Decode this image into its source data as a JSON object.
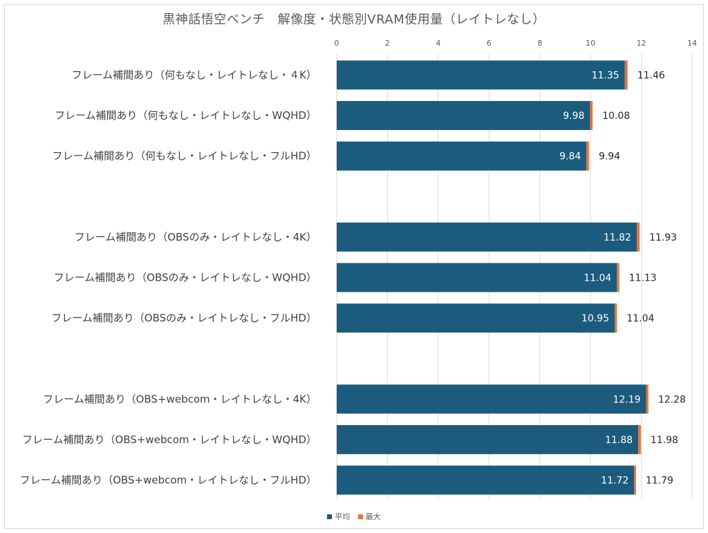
{
  "chart_data": {
    "type": "bar",
    "orientation": "horizontal",
    "title": "黒神話悟空ベンチ　解像度・状態別VRAM使用量（レイトレなし）",
    "xlim": [
      0,
      14
    ],
    "xticks": [
      "0",
      "2",
      "4",
      "6",
      "8",
      "10",
      "12",
      "14"
    ],
    "x_axis_position": "top",
    "grid": "vertical",
    "legend_position": "bottom",
    "categories": [
      "フレーム補間あり（何もなし・レイトレなし・４K）",
      "フレーム補間あり（何もなし・レイトレなし・WQHD）",
      "フレーム補間あり（何もなし・レイトレなし・フルHD）",
      "フレーム補間あり（OBSのみ・レイトレなし・4K）",
      "フレーム補間あり（OBSのみ・レイトレなし・WQHD）",
      "フレーム補間あり（OBSのみ・レイトレなし・フルHD）",
      "フレーム補間あり（OBS+webcom・レイトレなし・4K）",
      "フレーム補間あり（OBS+webcom・レイトレなし・WQHD）",
      "フレーム補間あり（OBS+webcom・レイトレなし・フルHD）"
    ],
    "groups": [
      [
        0,
        1,
        2
      ],
      [
        3,
        4,
        5
      ],
      [
        6,
        7,
        8
      ]
    ],
    "series": [
      {
        "name": "平均",
        "color": "#1b5c7e",
        "values": [
          11.35,
          9.98,
          9.84,
          11.82,
          11.04,
          10.95,
          12.19,
          11.88,
          11.72
        ]
      },
      {
        "name": "最大",
        "color": "#ec7339",
        "values": [
          11.46,
          10.08,
          9.94,
          11.93,
          11.13,
          11.04,
          12.28,
          11.98,
          11.79
        ]
      }
    ],
    "data_labels": {
      "avg": [
        "11.35",
        "9.98",
        "9.84",
        "11.82",
        "11.04",
        "10.95",
        "12.19",
        "11.88",
        "11.72"
      ],
      "max": [
        "11.46",
        "10.08",
        "9.94",
        "11.93",
        "11.13",
        "11.04",
        "12.28",
        "11.98",
        "11.79"
      ]
    }
  }
}
